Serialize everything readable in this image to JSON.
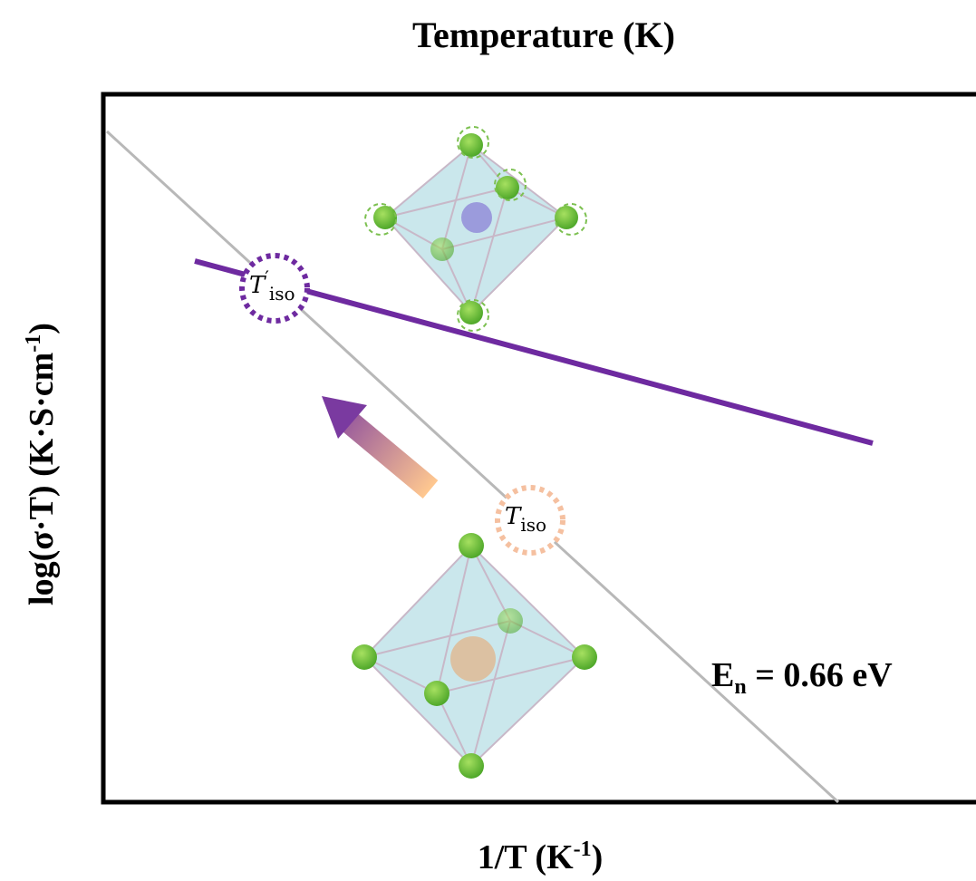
{
  "top_axis_label": "Temperature (K)",
  "x_axis_label": {
    "text": "1/T (K",
    "sup": "-1",
    "end": ")"
  },
  "y_axis_label": {
    "text": "log(σ·T) (K·S·cm",
    "sup": "-1",
    "end": ")"
  },
  "annotation": {
    "main": "E",
    "sub": "n",
    "rest": " = 0.66 eV"
  },
  "markers": [
    {
      "symbol": "T",
      "prime": "′",
      "sub": "iso"
    },
    {
      "symbol": "T",
      "sub": "iso"
    }
  ]
}
